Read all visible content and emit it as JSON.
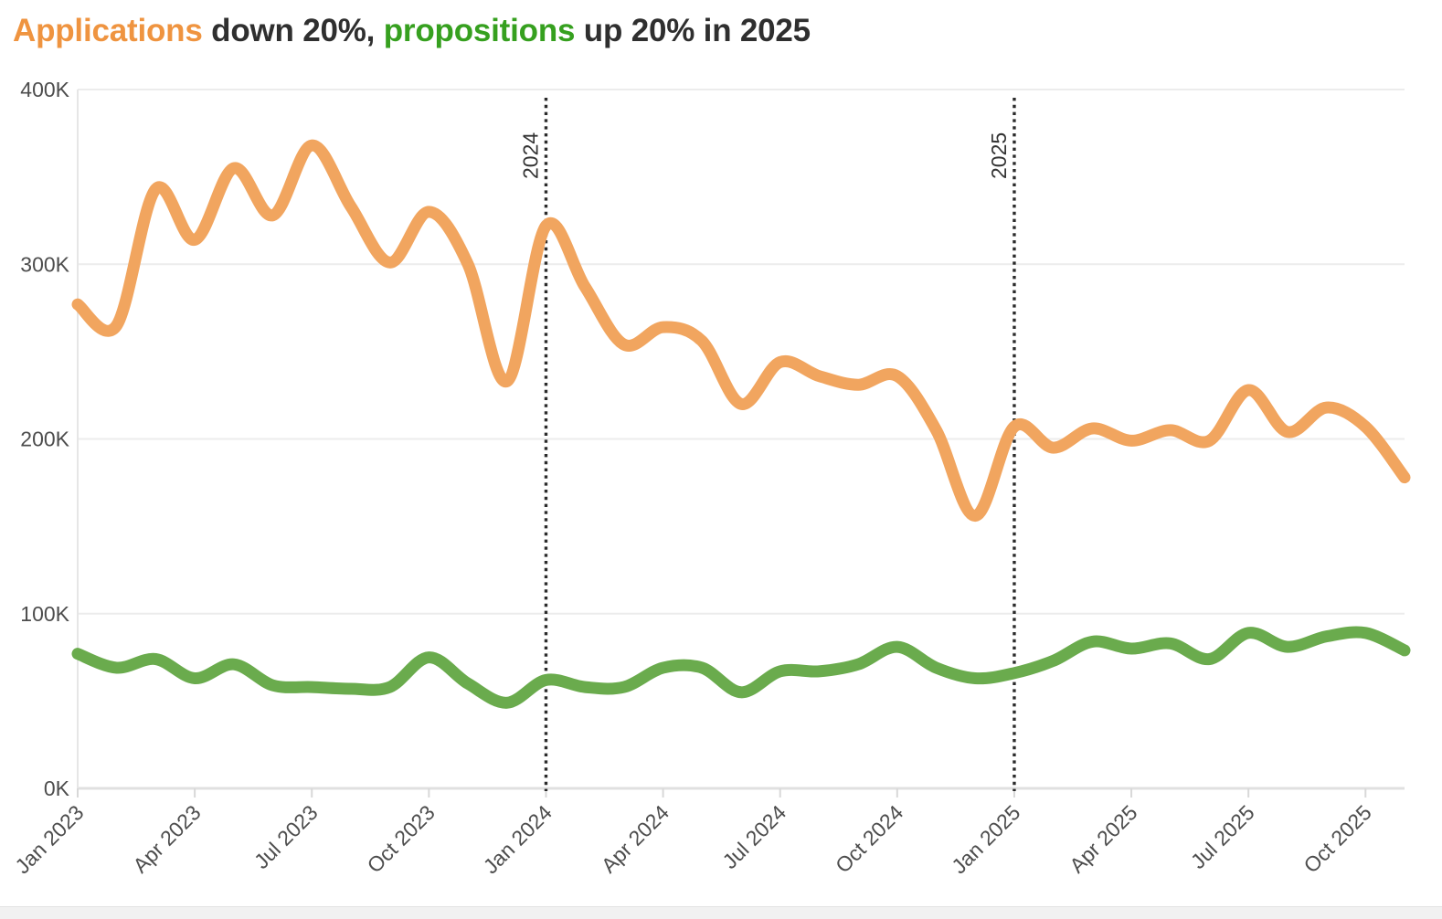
{
  "title": {
    "segments": [
      {
        "text": "Applications",
        "color": "#EF9440"
      },
      {
        "text": " down 20%, ",
        "color": "#2F2F2F"
      },
      {
        "text": "propositions",
        "color": "#36A01F"
      },
      {
        "text": " up 20% in 2025",
        "color": "#2F2F2F"
      }
    ]
  },
  "chart_data": {
    "type": "line",
    "x": [
      "Jan 2023",
      "Feb 2023",
      "Mar 2023",
      "Apr 2023",
      "May 2023",
      "Jun 2023",
      "Jul 2023",
      "Aug 2023",
      "Sep 2023",
      "Oct 2023",
      "Nov 2023",
      "Dec 2023",
      "Jan 2024",
      "Feb 2024",
      "Mar 2024",
      "Apr 2024",
      "May 2024",
      "Jun 2024",
      "Jul 2024",
      "Aug 2024",
      "Sep 2024",
      "Oct 2024",
      "Nov 2024",
      "Dec 2024",
      "Jan 2025",
      "Feb 2025",
      "Mar 2025",
      "Apr 2025",
      "May 2025",
      "Jun 2025",
      "Jul 2025",
      "Aug 2025",
      "Sep 2025",
      "Oct 2025",
      "Nov 2025"
    ],
    "unit": "K",
    "series": [
      {
        "name": "Applications",
        "color": "#F1A55F",
        "values": [
          277,
          265,
          343,
          314,
          355,
          328,
          368,
          333,
          301,
          330,
          300,
          233,
          322,
          287,
          254,
          264,
          256,
          220,
          244,
          236,
          231,
          236,
          205,
          156,
          207,
          195,
          206,
          199,
          205,
          199,
          228,
          204,
          218,
          207,
          178
        ]
      },
      {
        "name": "Propositions",
        "color": "#6AAB4D",
        "values": [
          77,
          69,
          74,
          63,
          71,
          59,
          58,
          57,
          58,
          75,
          60,
          49,
          62,
          58,
          58,
          69,
          69,
          55,
          67,
          67,
          71,
          81,
          69,
          63,
          66,
          73,
          84,
          80,
          83,
          74,
          89,
          81,
          87,
          89,
          79
        ]
      }
    ],
    "ylim": [
      0,
      400
    ],
    "yticks": [
      {
        "value": 0,
        "label": "0K"
      },
      {
        "value": 100,
        "label": "100K"
      },
      {
        "value": 200,
        "label": "200K"
      },
      {
        "value": 300,
        "label": "300K"
      },
      {
        "value": 400,
        "label": "400K"
      }
    ],
    "xticks": [
      {
        "index": 0,
        "label": "Jan 2023"
      },
      {
        "index": 3,
        "label": "Apr 2023"
      },
      {
        "index": 6,
        "label": "Jul 2023"
      },
      {
        "index": 9,
        "label": "Oct 2023"
      },
      {
        "index": 12,
        "label": "Jan 2024"
      },
      {
        "index": 15,
        "label": "Apr 2024"
      },
      {
        "index": 18,
        "label": "Jul 2024"
      },
      {
        "index": 21,
        "label": "Oct 2024"
      },
      {
        "index": 24,
        "label": "Jan 2025"
      },
      {
        "index": 27,
        "label": "Apr 2025"
      },
      {
        "index": 30,
        "label": "Jul 2025"
      },
      {
        "index": 33,
        "label": "Oct 2025"
      }
    ],
    "annotations": [
      {
        "label": "2024",
        "index": 12
      },
      {
        "label": "2025",
        "index": 24
      }
    ],
    "grid": "horizontal-on",
    "legend": "none",
    "colors": {
      "grid_line": "#ECECEC",
      "baseline": "#E0E0E0",
      "axis_tick": "#D8D8D8",
      "left_axis": "#E6E6E6",
      "axis_text": "#4D4D4D",
      "annotation_line": "#2B2B2B",
      "annotation_text": "#333333"
    }
  }
}
